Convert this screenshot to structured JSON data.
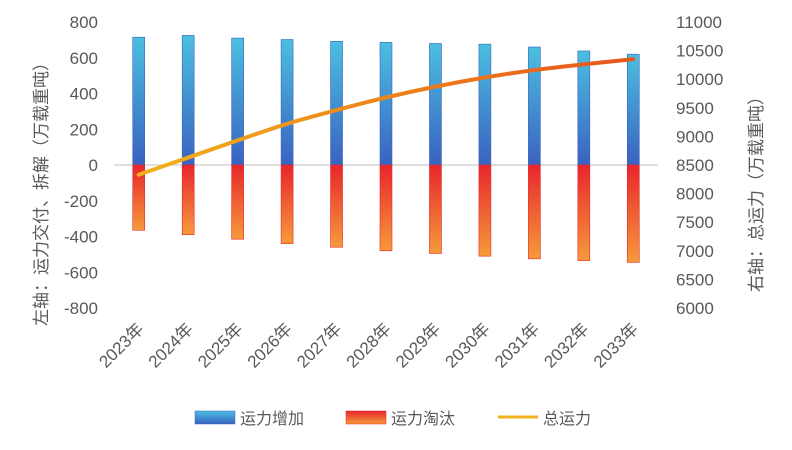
{
  "chart_data": {
    "type": "bar",
    "categories": [
      "2023年",
      "2024年",
      "2025年",
      "2026年",
      "2027年",
      "2028年",
      "2029年",
      "2030年",
      "2031年",
      "2032年",
      "2033年"
    ],
    "series": [
      {
        "name": "运力增加",
        "type": "bar",
        "axis": "left",
        "values": [
          715,
          725,
          710,
          702,
          692,
          686,
          680,
          676,
          660,
          638,
          620
        ]
      },
      {
        "name": "运力淘汰",
        "type": "bar",
        "axis": "left",
        "values": [
          -365,
          -390,
          -415,
          -440,
          -460,
          -480,
          -495,
          -510,
          -525,
          -535,
          -545
        ]
      },
      {
        "name": "总运力",
        "type": "line",
        "axis": "right",
        "values": [
          8330,
          8630,
          8930,
          9220,
          9460,
          9680,
          9870,
          10030,
          10160,
          10260,
          10350
        ]
      }
    ],
    "ylabel_left": "左轴：运力交付、拆解（万载重吨）",
    "ylabel_right": "右轴：总运力（万载重吨）",
    "ylim_left": [
      -800,
      800
    ],
    "ylim_right": [
      6000,
      11000
    ],
    "yticks_left": [
      "800",
      "600",
      "400",
      "200",
      "0",
      "-200",
      "-400",
      "-600",
      "-800"
    ],
    "yticks_right": [
      "11000",
      "10500",
      "10000",
      "9500",
      "9000",
      "8500",
      "8000",
      "7500",
      "7000",
      "6500",
      "6000"
    ],
    "legend_position": "bottom",
    "grid": false,
    "colors": {
      "increase_top": "#4bbfe0",
      "increase_bottom": "#3a62c0",
      "decrease_top": "#e8262c",
      "decrease_bottom": "#f59a3a",
      "line_start": "#f2b21b",
      "line_end": "#e8561e",
      "axis": "#bfbfbf",
      "text": "#595959"
    }
  }
}
